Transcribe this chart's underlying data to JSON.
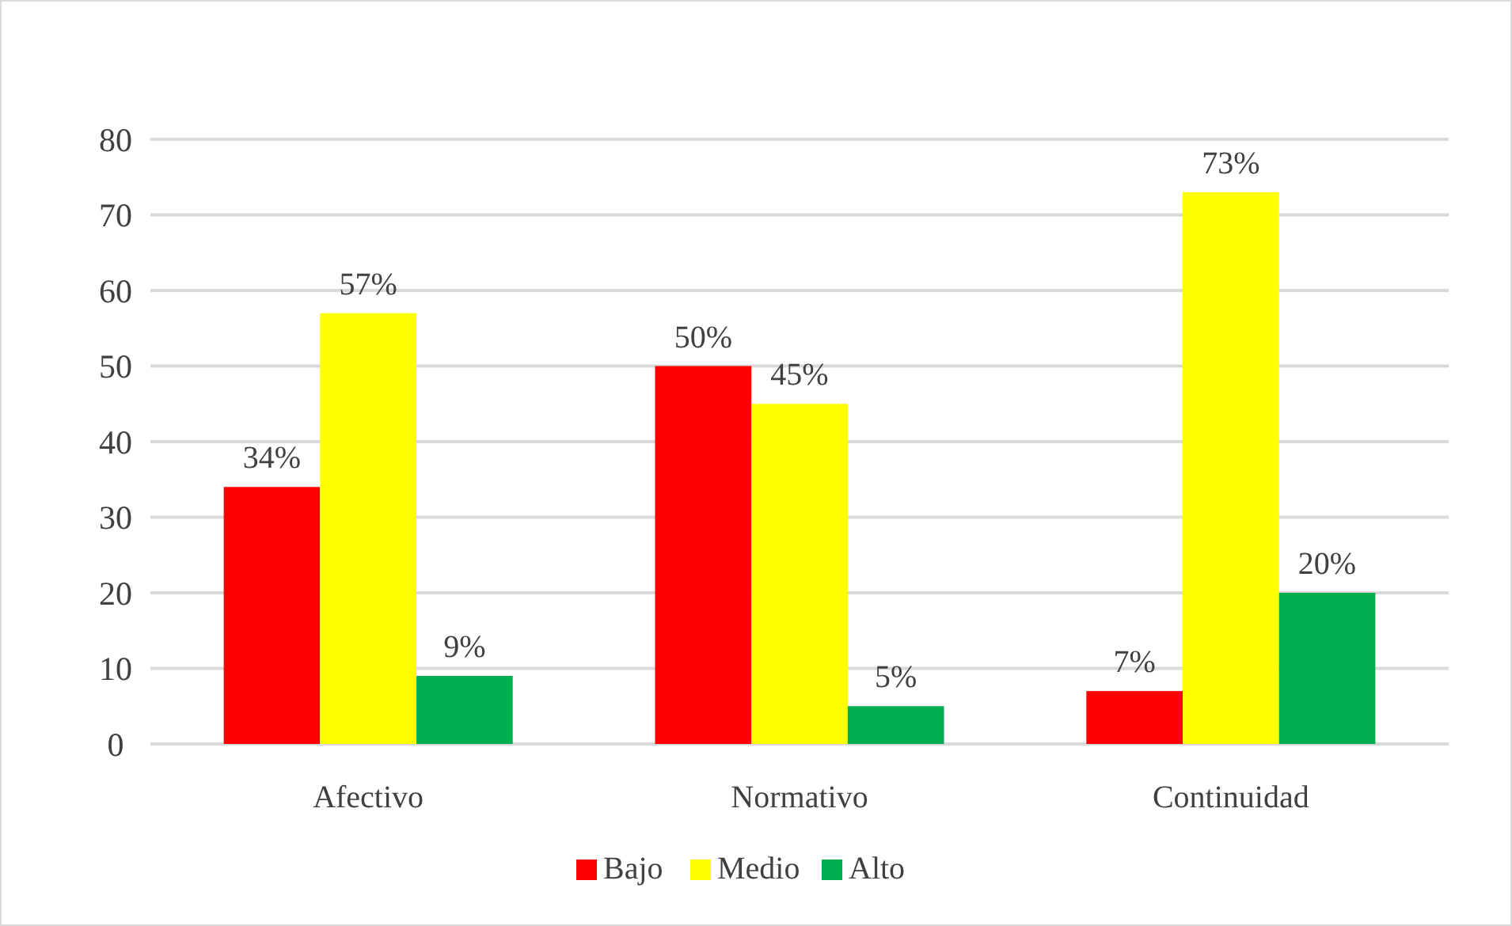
{
  "chart_data": {
    "type": "bar",
    "categories": [
      "Afectivo",
      "Normativo",
      "Continuidad"
    ],
    "series": [
      {
        "name": "Bajo",
        "color": "#ff0000",
        "values": [
          34,
          50,
          7
        ],
        "value_labels": [
          "34%",
          "50%",
          "7%"
        ]
      },
      {
        "name": "Medio",
        "color": "#ffff00",
        "values": [
          57,
          45,
          73
        ],
        "value_labels": [
          "57%",
          "45%",
          "73%"
        ]
      },
      {
        "name": "Alto",
        "color": "#00b050",
        "values": [
          9,
          5,
          20
        ],
        "value_labels": [
          "9%",
          "5%",
          "20%"
        ]
      }
    ],
    "ylim": [
      0,
      80
    ],
    "yticks": [
      0,
      10,
      20,
      30,
      40,
      50,
      60,
      70,
      80
    ],
    "grid": "y",
    "legend": "bottom"
  }
}
